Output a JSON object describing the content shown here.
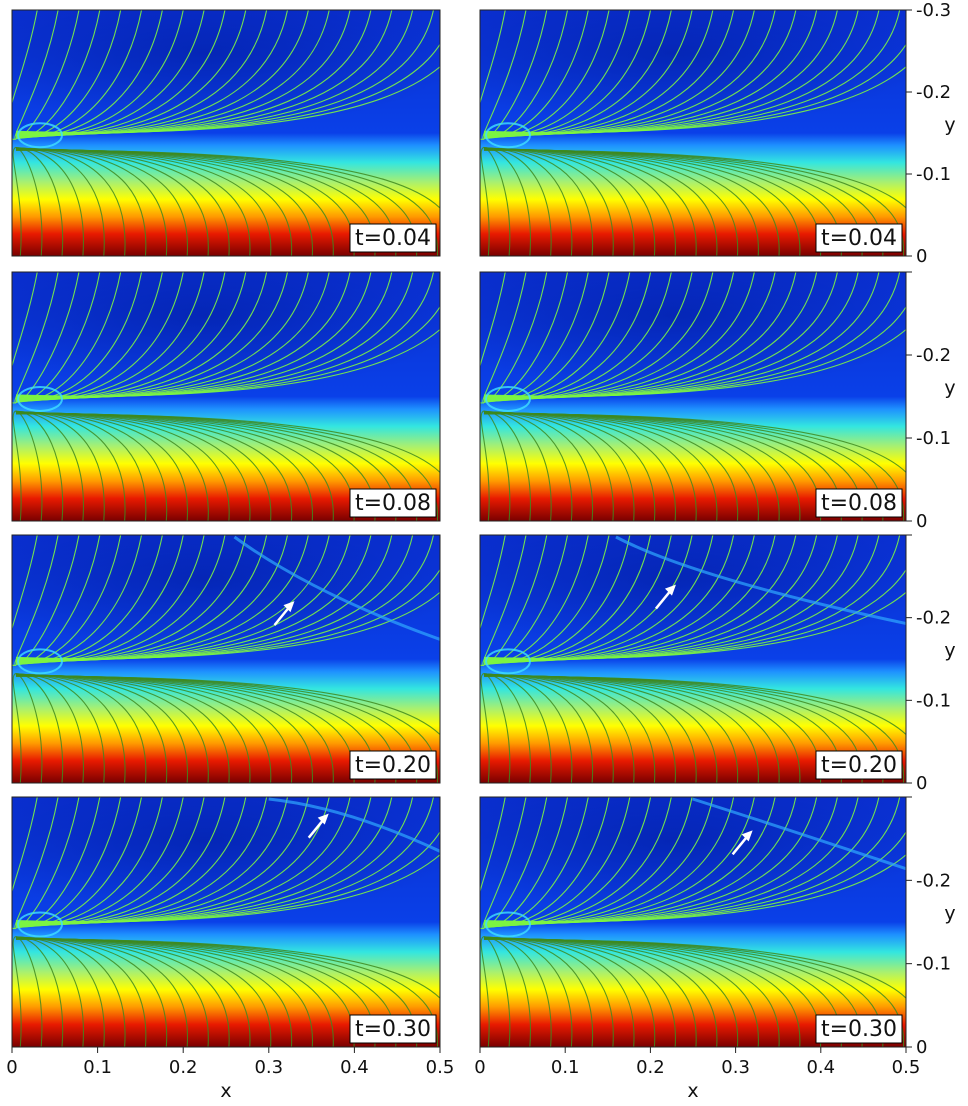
{
  "figure": {
    "axis_titles": {
      "x": "x",
      "y": "y"
    },
    "x_ticks": [
      "0",
      "0.1",
      "0.2",
      "0.3",
      "0.4",
      "0.5"
    ],
    "y_ticks": [
      "0",
      "0.1",
      "0.2",
      "0.3"
    ]
  },
  "chart_data": [
    {
      "type": "heatmap",
      "column": "left",
      "row": 1,
      "label": "t=0.04",
      "arrow": false
    },
    {
      "type": "heatmap",
      "column": "right",
      "row": 1,
      "label": "t=0.04",
      "arrow": false
    },
    {
      "type": "heatmap",
      "column": "left",
      "row": 2,
      "label": "t=0.08",
      "arrow": false
    },
    {
      "type": "heatmap",
      "column": "right",
      "row": 2,
      "label": "t=0.08",
      "arrow": false
    },
    {
      "type": "heatmap",
      "column": "left",
      "row": 3,
      "label": "t=0.20",
      "arrow": true,
      "arrow_tip": [
        0.33,
        0.22
      ]
    },
    {
      "type": "heatmap",
      "column": "right",
      "row": 3,
      "label": "t=0.20",
      "arrow": true,
      "arrow_tip": [
        0.23,
        0.24
      ]
    },
    {
      "type": "heatmap",
      "column": "left",
      "row": 4,
      "label": "t=0.30",
      "arrow": true,
      "arrow_tip": [
        0.37,
        0.28
      ]
    },
    {
      "type": "heatmap",
      "column": "right",
      "row": 4,
      "label": "t=0.30",
      "arrow": true,
      "arrow_tip": [
        0.32,
        0.26
      ]
    }
  ]
}
